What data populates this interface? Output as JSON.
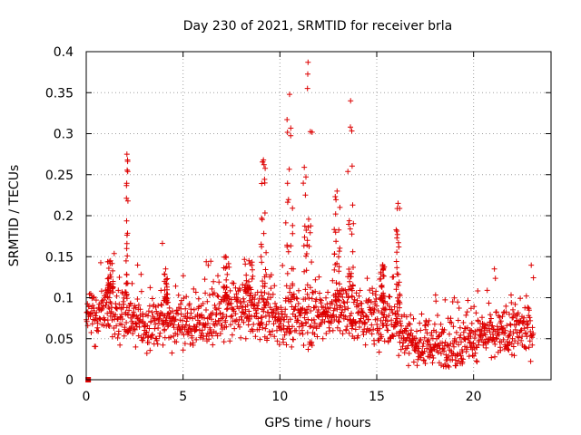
{
  "chart_data": {
    "type": "scatter",
    "title": "Day 230 of 2021, SRMTID for receiver brla",
    "xlabel": "GPS time / hours",
    "ylabel": "SRMTID / TECUs",
    "xlim": [
      0,
      24
    ],
    "ylim": [
      0,
      0.4
    ],
    "x_ticks": [
      0,
      5,
      10,
      15,
      20
    ],
    "x_tick_labels": [
      "0",
      "5",
      "10",
      "15",
      "20"
    ],
    "y_ticks": [
      0,
      0.05,
      0.1,
      0.15,
      0.2,
      0.25,
      0.3,
      0.35,
      0.4
    ],
    "y_tick_labels": [
      "0",
      "0.05",
      "0.1",
      "0.15",
      "0.2",
      "0.25",
      "0.3",
      "0.35",
      "0.4"
    ],
    "grid": true,
    "marker": "+",
    "color": "#dd0000",
    "x_end": 23.1,
    "baseline_profile": [
      [
        0.0,
        0.075
      ],
      [
        1.0,
        0.09
      ],
      [
        2.0,
        0.08
      ],
      [
        3.0,
        0.068
      ],
      [
        4.0,
        0.075
      ],
      [
        5.0,
        0.068
      ],
      [
        6.0,
        0.07
      ],
      [
        7.0,
        0.08
      ],
      [
        8.0,
        0.085
      ],
      [
        9.0,
        0.08
      ],
      [
        10.0,
        0.072
      ],
      [
        11.0,
        0.075
      ],
      [
        12.0,
        0.08
      ],
      [
        13.0,
        0.085
      ],
      [
        14.0,
        0.078
      ],
      [
        15.0,
        0.075
      ],
      [
        16.0,
        0.072
      ],
      [
        16.5,
        0.055
      ],
      [
        17.0,
        0.045
      ],
      [
        18.0,
        0.045
      ],
      [
        19.0,
        0.042
      ],
      [
        20.0,
        0.05
      ],
      [
        21.0,
        0.055
      ],
      [
        22.0,
        0.06
      ],
      [
        23.1,
        0.065
      ]
    ],
    "bursts": [
      {
        "x_range": [
          2.05,
          2.15
        ],
        "peak": 0.275
      },
      {
        "x_range": [
          1.1,
          1.4
        ],
        "peak": 0.145
      },
      {
        "x_range": [
          4.0,
          4.2
        ],
        "peak": 0.135
      },
      {
        "x_range": [
          7.1,
          7.3
        ],
        "peak": 0.15
      },
      {
        "x_range": [
          8.2,
          8.6
        ],
        "peak": 0.145
      },
      {
        "x_range": [
          9.0,
          9.3
        ],
        "peak": 0.268
      },
      {
        "x_range": [
          10.3,
          10.7
        ],
        "peak": 0.348
      },
      {
        "x_range": [
          11.2,
          11.7
        ],
        "peak": 0.387
      },
      {
        "x_range": [
          12.8,
          13.1
        ],
        "peak": 0.23
      },
      {
        "x_range": [
          13.5,
          13.8
        ],
        "peak": 0.34
      },
      {
        "x_range": [
          16.0,
          16.2
        ],
        "peak": 0.215
      },
      {
        "x_range": [
          15.2,
          15.4
        ],
        "peak": 0.14
      }
    ],
    "special_points": [
      {
        "x": 0.1,
        "y": 0.0,
        "marker": "square"
      }
    ]
  }
}
